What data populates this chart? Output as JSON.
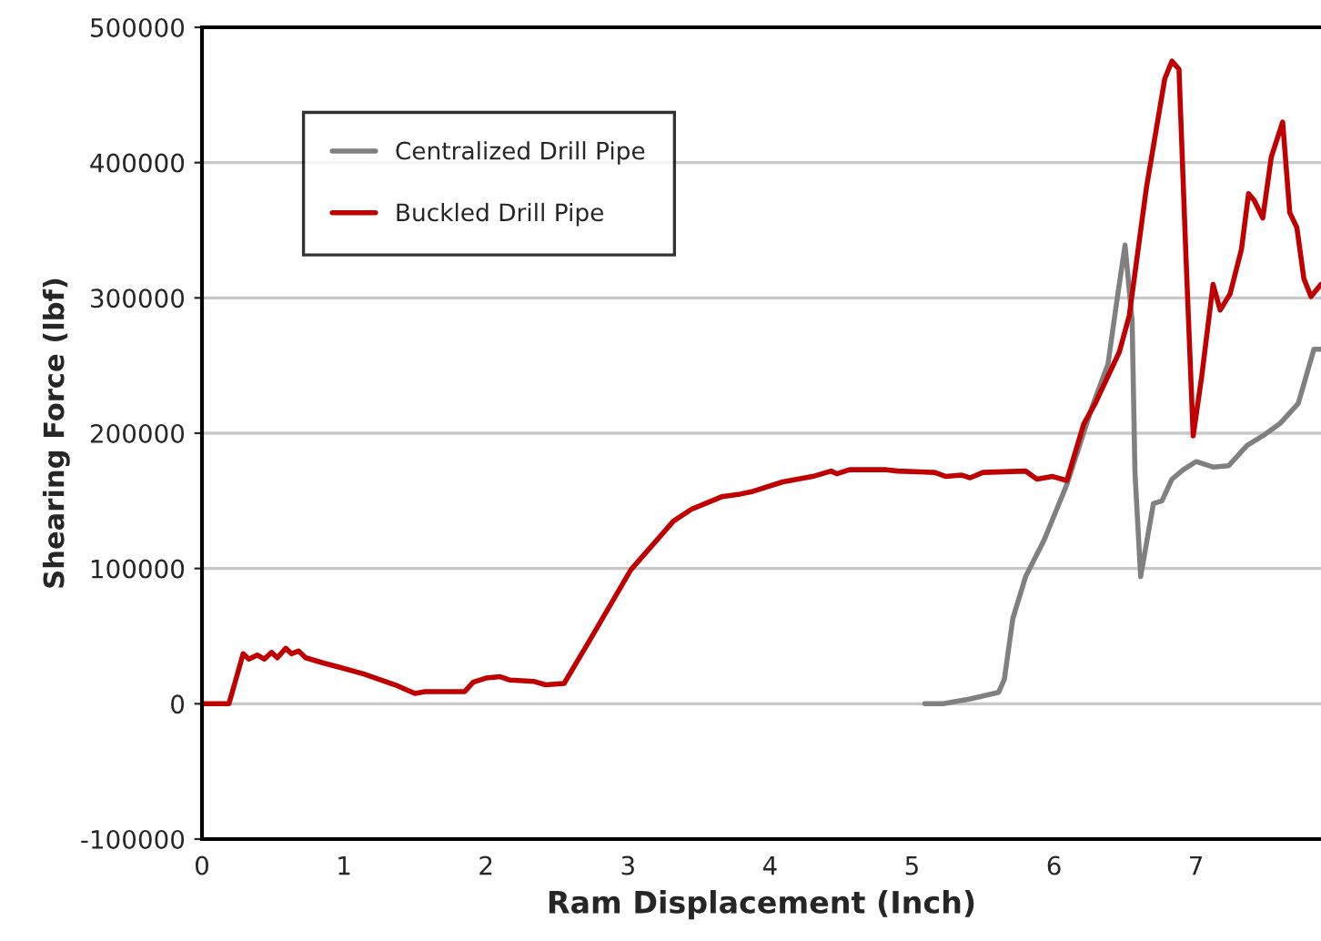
{
  "chart_data": {
    "type": "line",
    "xlabel": "Ram Displacement (Inch)",
    "ylabel": "Shearing Force (lbf)",
    "xlim": [
      0,
      7.88
    ],
    "xticks": [
      0,
      1,
      2,
      3,
      4,
      5,
      6,
      7
    ],
    "ylim": [
      -100000,
      500000
    ],
    "yticks": [
      -100000,
      0,
      100000,
      200000,
      300000,
      400000,
      500000
    ],
    "grid": "y",
    "legend": "top left",
    "marker": "none",
    "line_style": "solid",
    "series": [
      {
        "name": "Centralized Drill Pipe",
        "color": "#808080",
        "x": [
          5.09,
          5.22,
          5.41,
          5.61,
          5.65,
          5.71,
          5.8,
          5.93,
          6.09,
          6.27,
          6.38,
          6.44,
          6.5,
          6.55,
          6.57,
          6.61,
          6.7,
          6.76,
          6.83,
          6.91,
          7.0,
          7.12,
          7.23,
          7.36,
          7.47,
          7.59,
          7.72,
          7.83,
          7.88
        ],
        "values": [
          0,
          0,
          3600,
          8500,
          18000,
          63000,
          94000,
          121000,
          162000,
          220000,
          251000,
          296000,
          339000,
          283000,
          171000,
          94000,
          148000,
          150000,
          166000,
          173000,
          179000,
          175000,
          176000,
          191000,
          198000,
          207000,
          222000,
          262000,
          262000
        ]
      },
      {
        "name": "Buckled Drill Pipe",
        "color": "#c00000",
        "x": [
          0,
          0.19,
          0.29,
          0.33,
          0.39,
          0.44,
          0.49,
          0.53,
          0.59,
          0.63,
          0.68,
          0.73,
          0.86,
          0.97,
          1.14,
          1.36,
          1.5,
          1.57,
          1.85,
          1.91,
          2.0,
          2.1,
          2.17,
          2.34,
          2.42,
          2.55,
          2.72,
          3.02,
          3.32,
          3.45,
          3.66,
          3.79,
          3.88,
          4.09,
          4.3,
          4.43,
          4.47,
          4.56,
          4.82,
          4.9,
          5.16,
          5.24,
          5.35,
          5.41,
          5.5,
          5.8,
          5.88,
          5.99,
          6.09,
          6.21,
          6.29,
          6.46,
          6.53,
          6.65,
          6.78,
          6.83,
          6.88,
          6.93,
          6.98,
          7.04,
          7.12,
          7.17,
          7.24,
          7.32,
          7.37,
          7.41,
          7.47,
          7.53,
          7.61,
          7.66,
          7.71,
          7.76,
          7.81,
          7.88
        ],
        "values": [
          0,
          0,
          37000,
          33000,
          36000,
          33000,
          38000,
          34000,
          41000,
          37000,
          39000,
          34000,
          30000,
          27000,
          22000,
          14000,
          7600,
          9000,
          9000,
          16000,
          19000,
          20000,
          17500,
          16500,
          14000,
          15000,
          45000,
          99000,
          135000,
          144000,
          153000,
          155000,
          157000,
          164000,
          168000,
          172000,
          170000,
          173000,
          173000,
          172000,
          171000,
          168000,
          169000,
          167000,
          171000,
          172000,
          166000,
          168000,
          165000,
          207000,
          222000,
          260000,
          287000,
          381000,
          462000,
          475000,
          469000,
          328000,
          198000,
          242000,
          310000,
          291000,
          303000,
          336000,
          377000,
          372000,
          359000,
          404000,
          430000,
          363000,
          352000,
          314000,
          301000,
          310000
        ]
      }
    ]
  }
}
